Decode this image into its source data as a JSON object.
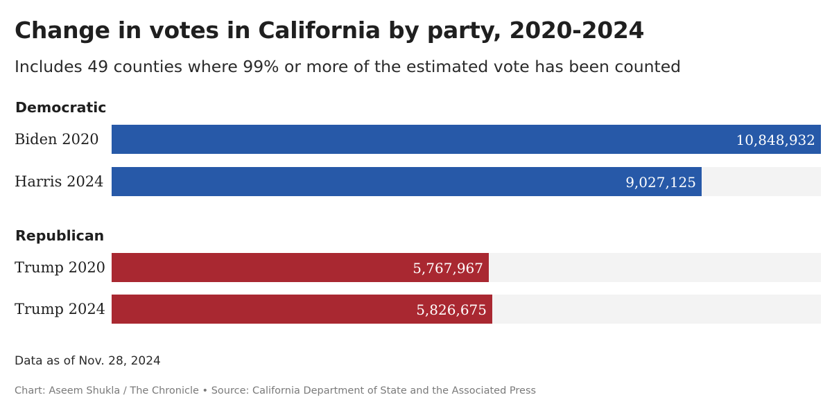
{
  "chart_data": {
    "type": "bar",
    "orientation": "horizontal",
    "title": "Change in votes in California by party, 2020-2024",
    "subtitle": "Includes 49 counties where 99% or more of the estimated vote has been counted",
    "groups": [
      {
        "label": "Democratic",
        "color": "#2759a8",
        "bars": [
          {
            "label": "Biden 2020",
            "value": 10848932,
            "value_label": "10,848,932"
          },
          {
            "label": "Harris 2024",
            "value": 9027125,
            "value_label": "9,027,125"
          }
        ]
      },
      {
        "label": "Republican",
        "color": "#a92831",
        "bars": [
          {
            "label": "Trump 2020",
            "value": 5767967,
            "value_label": "5,767,967"
          },
          {
            "label": "Trump 2024",
            "value": 5826675,
            "value_label": "5,826,675"
          }
        ]
      }
    ],
    "xlim": [
      0,
      10848932
    ],
    "track_color": "#f3f3f3",
    "note": "Data as of Nov. 28, 2024",
    "credit": "Chart: Aseem Shukla / The Chronicle • Source: California Department of State and the Associated Press"
  }
}
